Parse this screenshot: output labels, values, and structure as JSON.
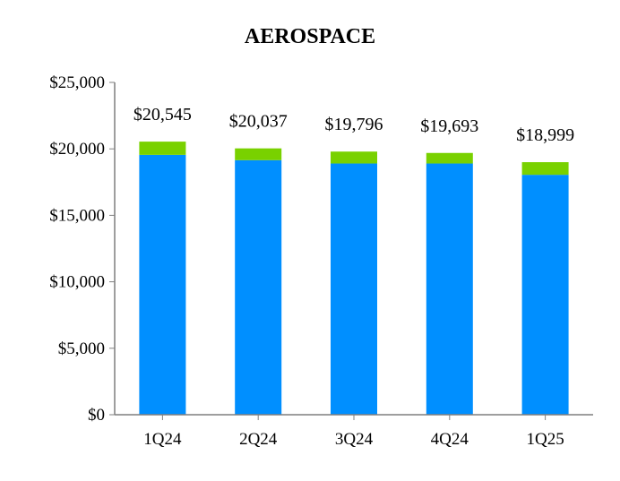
{
  "chart_data": {
    "type": "bar",
    "stacked": true,
    "title": "AEROSPACE",
    "xlabel": "",
    "ylabel": "",
    "categories": [
      "1Q24",
      "2Q24",
      "3Q24",
      "4Q24",
      "1Q25"
    ],
    "series": [
      {
        "values": [
          19550,
          19150,
          18900,
          18900,
          18050
        ],
        "color": "#008FFF"
      },
      {
        "values": [
          995,
          887,
          896,
          793,
          949
        ],
        "color": "#79D100"
      }
    ],
    "totals": [
      "$20,545",
      "$20,037",
      "$19,796",
      "$19,693",
      "$18,999"
    ],
    "total_values": [
      20545,
      20037,
      19796,
      19693,
      18999
    ],
    "ylim": [
      0,
      25000
    ],
    "yticks": [
      0,
      5000,
      10000,
      15000,
      20000,
      25000
    ],
    "ytick_labels": [
      "$0",
      "$5,000",
      "$10,000",
      "$15,000",
      "$20,000",
      "$25,000"
    ],
    "grid": false,
    "legend": "none",
    "axis_color": "#7f7f7f"
  }
}
